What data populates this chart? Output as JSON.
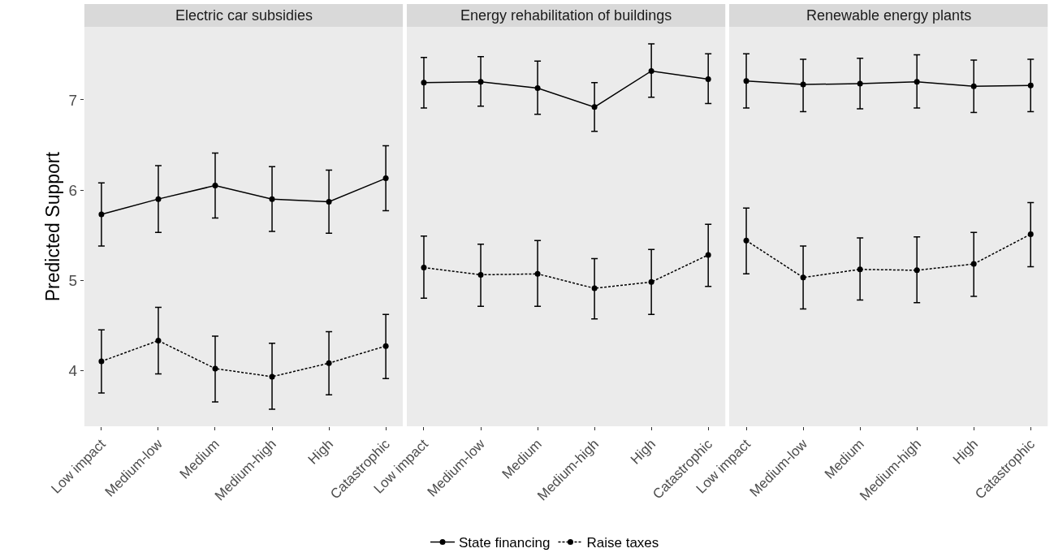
{
  "chart_data": [
    {
      "type": "line",
      "title": "Electric car subsidies",
      "ylabel": "Predicted Support",
      "categories": [
        "Low impact",
        "Medium-low",
        "Medium",
        "Medium-high",
        "High",
        "Catastrophic"
      ],
      "ylim": [
        3.38,
        7.81
      ],
      "yticks": [
        4,
        5,
        6,
        7
      ],
      "grid": false,
      "legend": "bottom",
      "marker": "circle",
      "series": [
        {
          "name": "State financing",
          "color": "#000000",
          "line_style": "solid",
          "values": [
            5.73,
            5.9,
            6.05,
            5.9,
            5.87,
            6.13
          ],
          "errors": [
            [
              5.38,
              6.08
            ],
            [
              5.53,
              6.27
            ],
            [
              5.69,
              6.41
            ],
            [
              5.54,
              6.26
            ],
            [
              5.52,
              6.22
            ],
            [
              5.77,
              6.49
            ]
          ]
        },
        {
          "name": "Raise taxes",
          "color": "#000000",
          "line_style": "dashed",
          "values": [
            4.1,
            4.33,
            4.02,
            3.93,
            4.08,
            4.27
          ],
          "errors": [
            [
              3.75,
              4.45
            ],
            [
              3.96,
              4.7
            ],
            [
              3.65,
              4.38
            ],
            [
              3.57,
              4.3
            ],
            [
              3.73,
              4.43
            ],
            [
              3.91,
              4.62
            ]
          ]
        }
      ]
    },
    {
      "type": "line",
      "title": "Energy rehabilitation of buildings",
      "categories": [
        "Low impact",
        "Medium-low",
        "Medium",
        "Medium-high",
        "High",
        "Catastrophic"
      ],
      "ylim": [
        3.38,
        7.81
      ],
      "tick_labels": "x",
      "grid": false,
      "marker": "circle",
      "series": [
        {
          "color": "#000000",
          "line_style": "solid",
          "values": [
            7.19,
            7.2,
            7.13,
            6.92,
            7.32,
            7.23
          ],
          "errors": [
            [
              6.91,
              7.47
            ],
            [
              6.93,
              7.48
            ],
            [
              6.84,
              7.43
            ],
            [
              6.65,
              7.19
            ],
            [
              7.03,
              7.62
            ],
            [
              6.96,
              7.51
            ]
          ]
        },
        {
          "color": "#000000",
          "line_style": "dashed",
          "values": [
            5.14,
            5.06,
            5.07,
            4.91,
            4.98,
            5.28
          ],
          "errors": [
            [
              4.8,
              5.49
            ],
            [
              4.71,
              5.4
            ],
            [
              4.71,
              5.44
            ],
            [
              4.57,
              5.24
            ],
            [
              4.62,
              5.34
            ],
            [
              4.93,
              5.62
            ]
          ]
        }
      ]
    },
    {
      "type": "line",
      "title": "Renewable energy plants",
      "categories": [
        "Low impact",
        "Medium-low",
        "Medium",
        "Medium-high",
        "High",
        "Catastrophic"
      ],
      "ylim": [
        3.38,
        7.81
      ],
      "tick_labels": "x",
      "grid": false,
      "marker": "circle",
      "series": [
        {
          "color": "#000000",
          "line_style": "solid",
          "values": [
            7.21,
            7.17,
            7.18,
            7.2,
            7.15,
            7.16
          ],
          "errors": [
            [
              6.91,
              7.51
            ],
            [
              6.87,
              7.45
            ],
            [
              6.9,
              7.46
            ],
            [
              6.91,
              7.5
            ],
            [
              6.86,
              7.44
            ],
            [
              6.87,
              7.45
            ]
          ]
        },
        {
          "color": "#000000",
          "line_style": "dashed",
          "values": [
            5.44,
            5.03,
            5.12,
            5.11,
            5.18,
            5.51
          ],
          "errors": [
            [
              5.07,
              5.8
            ],
            [
              4.68,
              5.38
            ],
            [
              4.78,
              5.47
            ],
            [
              4.75,
              5.48
            ],
            [
              4.82,
              5.53
            ],
            [
              5.15,
              5.86
            ]
          ]
        }
      ]
    }
  ]
}
